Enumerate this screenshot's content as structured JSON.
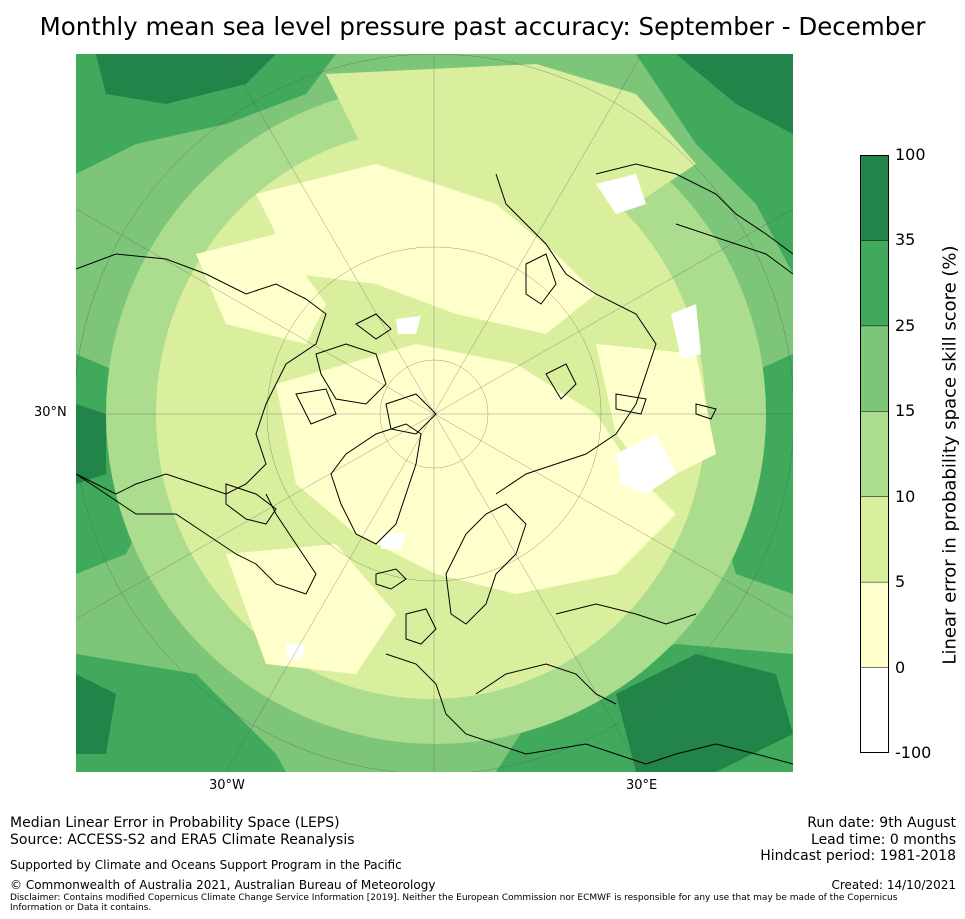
{
  "title": "Monthly mean sea level pressure past accuracy: September - December",
  "map_labels": {
    "lat_30n": "30°N",
    "lon_30w": "30°W",
    "lon_30e": "30°E"
  },
  "colorbar": {
    "label": "Linear error in probability space skill score (%)",
    "ticks": [
      "100",
      "35",
      "25",
      "15",
      "10",
      "5",
      "0",
      "-100"
    ],
    "colors": [
      "#23844a",
      "#40a95b",
      "#7dc579",
      "#acdc8e",
      "#d9ef9e",
      "#ffffcc",
      "#ffffff"
    ]
  },
  "footer": {
    "method": "Median Linear Error in Probability Space (LEPS)",
    "source": "Source: ACCESS-S2 and ERA5 Climate Reanalysis",
    "support": "Supported by Climate and Oceans Support Program in the Pacific",
    "copyright": "© Commonwealth of Australia 2021, Australian Bureau of Meteorology",
    "disclaimer_1": "Disclaimer: Contains modified Copernicus Climate Change Service Information [2019]. Neither the European Commission nor ECMWF is responsible for any use that may be made of the Copernicus",
    "disclaimer_2": "Information or Data it contains.",
    "run_date": "Run date: 9th August",
    "lead_time": "Lead time: 0 months",
    "hindcast": "Hindcast period: 1981-2018",
    "created": "Created: 14/10/2021"
  }
}
